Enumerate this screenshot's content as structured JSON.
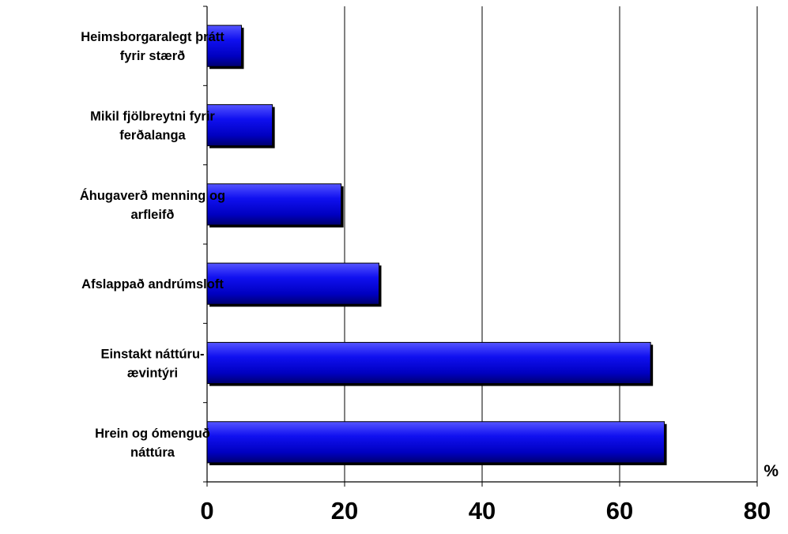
{
  "chart_data": {
    "type": "bar",
    "orientation": "horizontal",
    "categories": [
      [
        "Heimsborgaralegt þrátt",
        "fyrir stærð"
      ],
      [
        "Mikil fjölbreytni fyrir",
        "ferðalanga"
      ],
      [
        "Áhugaverð menning og",
        "arfleifð"
      ],
      [
        "Afslappað andrúmsloft"
      ],
      [
        "Einstakt náttúru-",
        "ævintýri"
      ],
      [
        "Hrein og ómenguð",
        "náttúra"
      ]
    ],
    "values": [
      5,
      9.5,
      19.5,
      25,
      64.5,
      66.5
    ],
    "xlim": [
      0,
      80
    ],
    "xticks": [
      "0",
      "20",
      "40",
      "60",
      "80"
    ],
    "xtick_values": [
      0,
      20,
      40,
      60,
      80
    ],
    "x_unit": "%",
    "grid": "vertical",
    "legend": "none",
    "bar_color": "#0000ff"
  }
}
